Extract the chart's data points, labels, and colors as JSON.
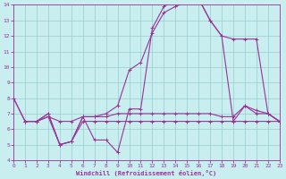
{
  "xlabel": "Windchill (Refroidissement éolien,°C)",
  "xlim": [
    0,
    23
  ],
  "ylim": [
    4,
    14
  ],
  "xticks": [
    0,
    1,
    2,
    3,
    4,
    5,
    6,
    7,
    8,
    9,
    10,
    11,
    12,
    13,
    14,
    15,
    16,
    17,
    18,
    19,
    20,
    21,
    22,
    23
  ],
  "yticks": [
    4,
    5,
    6,
    7,
    8,
    9,
    10,
    11,
    12,
    13,
    14
  ],
  "bg_color": "#c8eef0",
  "line_color": "#993399",
  "grid_color": "#99cccc",
  "curve1_x": [
    0,
    1,
    2,
    3,
    4,
    5,
    6,
    7,
    8,
    9,
    10,
    11,
    12,
    13,
    14,
    15,
    16,
    17,
    18,
    19,
    20,
    21,
    22,
    23
  ],
  "curve1_y": [
    8.0,
    6.5,
    6.5,
    7.0,
    5.0,
    5.2,
    6.8,
    5.3,
    5.3,
    4.5,
    7.3,
    7.3,
    12.5,
    13.9,
    14.3,
    14.3,
    14.4,
    13.0,
    12.0,
    6.5,
    7.5,
    7.0,
    7.0,
    6.5
  ],
  "curve2_x": [
    0,
    1,
    2,
    3,
    4,
    5,
    6,
    7,
    8,
    9,
    10,
    11,
    12,
    13,
    14,
    15,
    16,
    17,
    18,
    19,
    20,
    21,
    22,
    23
  ],
  "curve2_y": [
    8.0,
    6.5,
    6.5,
    7.0,
    5.0,
    5.2,
    6.8,
    6.8,
    7.0,
    7.5,
    9.8,
    10.3,
    12.2,
    13.5,
    13.9,
    14.2,
    14.4,
    13.0,
    12.0,
    11.8,
    11.8,
    11.8,
    7.0,
    6.5
  ],
  "curve3_x": [
    1,
    2,
    3,
    4,
    5,
    6,
    7,
    8,
    9,
    10,
    11,
    12,
    13,
    14,
    15,
    16,
    17,
    18,
    19,
    20,
    21,
    22,
    23
  ],
  "curve3_y": [
    6.5,
    6.5,
    6.8,
    6.5,
    6.5,
    6.8,
    6.8,
    6.8,
    7.0,
    7.0,
    7.0,
    7.0,
    7.0,
    7.0,
    7.0,
    7.0,
    7.0,
    6.8,
    6.8,
    7.5,
    7.2,
    7.0,
    6.5
  ],
  "curve4_x": [
    1,
    2,
    3,
    4,
    5,
    6,
    7,
    8,
    9,
    10,
    11,
    12,
    13,
    14,
    15,
    16,
    17,
    18,
    19,
    20,
    21,
    22,
    23
  ],
  "curve4_y": [
    6.5,
    6.5,
    6.8,
    5.0,
    5.2,
    6.5,
    6.5,
    6.5,
    6.5,
    6.5,
    6.5,
    6.5,
    6.5,
    6.5,
    6.5,
    6.5,
    6.5,
    6.5,
    6.5,
    6.5,
    6.5,
    6.5,
    6.5
  ]
}
